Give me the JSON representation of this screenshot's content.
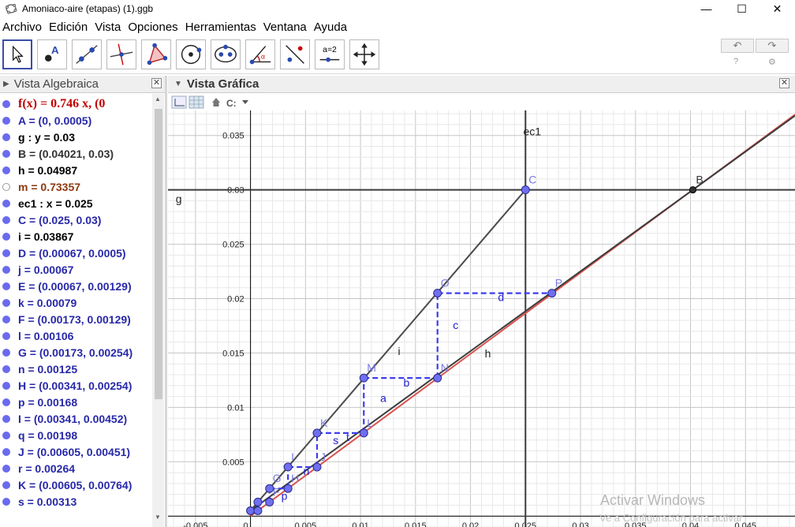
{
  "window": {
    "title": "Amoniaco-aire (etapas) (1).ggb"
  },
  "menu": [
    "Archivo",
    "Edición",
    "Vista",
    "Opciones",
    "Herramientas",
    "Ventana",
    "Ayuda"
  ],
  "toolbar": {
    "slider_label": "a=2"
  },
  "algebra": {
    "title": "Vista Algebraica",
    "items": [
      {
        "text": "f(x) = 0.746 x,    (0",
        "color": "#c00000",
        "dot": "filled"
      },
      {
        "text": "A = (0, 0.0005)",
        "color": "#2828a8",
        "dot": "filled"
      },
      {
        "text": "g : y = 0.03",
        "color": "#000000",
        "dot": "filled"
      },
      {
        "text": "B = (0.04021, 0.03)",
        "color": "#333333",
        "dot": "filled"
      },
      {
        "text": "h = 0.04987",
        "color": "#000000",
        "dot": "filled"
      },
      {
        "text": "m = 0.73357",
        "color": "#8b3a0e",
        "dot": "hollow"
      },
      {
        "text": "ec1 : x = 0.025",
        "color": "#000000",
        "dot": "filled"
      },
      {
        "text": "C = (0.025, 0.03)",
        "color": "#2828a8",
        "dot": "filled"
      },
      {
        "text": "i = 0.03867",
        "color": "#000000",
        "dot": "filled"
      },
      {
        "text": "D = (0.00067, 0.0005)",
        "color": "#2828a8",
        "dot": "filled"
      },
      {
        "text": "j = 0.00067",
        "color": "#2828a8",
        "dot": "filled"
      },
      {
        "text": "E = (0.00067, 0.00129)",
        "color": "#2828a8",
        "dot": "filled"
      },
      {
        "text": "k = 0.00079",
        "color": "#2828a8",
        "dot": "filled"
      },
      {
        "text": "F = (0.00173, 0.00129)",
        "color": "#2828a8",
        "dot": "filled"
      },
      {
        "text": "l = 0.00106",
        "color": "#2828a8",
        "dot": "filled"
      },
      {
        "text": "G = (0.00173, 0.00254)",
        "color": "#2828a8",
        "dot": "filled"
      },
      {
        "text": "n = 0.00125",
        "color": "#2828a8",
        "dot": "filled"
      },
      {
        "text": "H = (0.00341, 0.00254)",
        "color": "#2828a8",
        "dot": "filled"
      },
      {
        "text": "p = 0.00168",
        "color": "#2828a8",
        "dot": "filled"
      },
      {
        "text": "I = (0.00341, 0.00452)",
        "color": "#2828a8",
        "dot": "filled"
      },
      {
        "text": "q = 0.00198",
        "color": "#2828a8",
        "dot": "filled"
      },
      {
        "text": "J = (0.00605, 0.00451)",
        "color": "#2828a8",
        "dot": "filled"
      },
      {
        "text": "r = 0.00264",
        "color": "#2828a8",
        "dot": "filled"
      },
      {
        "text": "K = (0.00605, 0.00764)",
        "color": "#2828a8",
        "dot": "filled"
      },
      {
        "text": "s = 0.00313",
        "color": "#2828a8",
        "dot": "filled"
      }
    ]
  },
  "graphics": {
    "title": "Vista Gráfica"
  },
  "chart_data": {
    "type": "line",
    "xlim": [
      -0.0075,
      0.0495
    ],
    "ylim": [
      -0.001,
      0.0373
    ],
    "grid": true,
    "x_ticks": [
      "-0.005",
      "0",
      "0.005",
      "0.01",
      "0.015",
      "0.02",
      "0.025",
      "0.03",
      "0.035",
      "0.04",
      "0.045"
    ],
    "y_ticks": [
      "0.005",
      "0.01",
      "0.015",
      "0.02",
      "0.025",
      "0.03",
      "0.035"
    ],
    "points": [
      {
        "name": "A",
        "x": 0,
        "y": 0.0005,
        "show_label": false
      },
      {
        "name": "B",
        "x": 0.04021,
        "y": 0.03,
        "show_label": true
      },
      {
        "name": "C",
        "x": 0.025,
        "y": 0.03,
        "show_label": true
      },
      {
        "name": "D",
        "x": 0.00067,
        "y": 0.0005,
        "show_label": false
      },
      {
        "name": "E",
        "x": 0.00067,
        "y": 0.00129,
        "show_label": false
      },
      {
        "name": "F",
        "x": 0.00173,
        "y": 0.00129,
        "show_label": true
      },
      {
        "name": "G",
        "x": 0.00173,
        "y": 0.00254,
        "show_label": true
      },
      {
        "name": "H",
        "x": 0.00341,
        "y": 0.00254,
        "show_label": true
      },
      {
        "name": "I",
        "x": 0.00341,
        "y": 0.00452,
        "show_label": true
      },
      {
        "name": "J",
        "x": 0.00605,
        "y": 0.00451,
        "show_label": true
      },
      {
        "name": "K",
        "x": 0.00605,
        "y": 0.00764,
        "show_label": true
      },
      {
        "name": "L",
        "x": 0.0103,
        "y": 0.00764,
        "show_label": true
      },
      {
        "name": "M",
        "x": 0.0103,
        "y": 0.0127,
        "show_label": true
      },
      {
        "name": "N",
        "x": 0.017,
        "y": 0.0127,
        "show_label": true
      },
      {
        "name": "O",
        "x": 0.017,
        "y": 0.0205,
        "show_label": true
      },
      {
        "name": "P",
        "x": 0.0274,
        "y": 0.0205,
        "show_label": true
      }
    ],
    "equilibrium_curve": {
      "name": "f",
      "slope": 0.746,
      "color": "#d9534f"
    },
    "operating_lines": [
      {
        "name": "h",
        "from": [
          0,
          0.0005
        ],
        "to": [
          0.04021,
          0.03
        ],
        "color": "#3c3c3c"
      },
      {
        "name": "i",
        "from": [
          0,
          0.0005
        ],
        "to": [
          0.025,
          0.03
        ],
        "color": "#4a4a4a"
      }
    ],
    "horizontal_line": {
      "name": "g",
      "y": 0.03
    },
    "vertical_line": {
      "name": "ec1",
      "x": 0.025
    },
    "step_segment_labels": [
      {
        "name": "d",
        "x": 0.0225,
        "y": 0.0198
      },
      {
        "name": "c",
        "x": 0.0184,
        "y": 0.0172
      },
      {
        "name": "b",
        "x": 0.0139,
        "y": 0.0119
      },
      {
        "name": "a",
        "x": 0.0118,
        "y": 0.0105
      },
      {
        "name": "t",
        "x": 0.0087,
        "y": 0.0069
      },
      {
        "name": "s",
        "x": 0.0075,
        "y": 0.0066
      },
      {
        "name": "n",
        "x": 0.0048,
        "y": 0.0038
      },
      {
        "name": "p",
        "x": 0.0028,
        "y": 0.0015
      }
    ],
    "line_labels": [
      {
        "name": "i",
        "x": 0.0134,
        "y": 0.0148
      },
      {
        "name": "h",
        "x": 0.0213,
        "y": 0.0146
      },
      {
        "name": "ec1",
        "x": 0.0248,
        "y": 0.035
      },
      {
        "name": "g",
        "x": -0.0068,
        "y": 0.0288
      }
    ],
    "step_color": "#3d3df0"
  },
  "watermark": {
    "line1": "Activar Windows",
    "line2": "Ve a Configuración para activar"
  }
}
